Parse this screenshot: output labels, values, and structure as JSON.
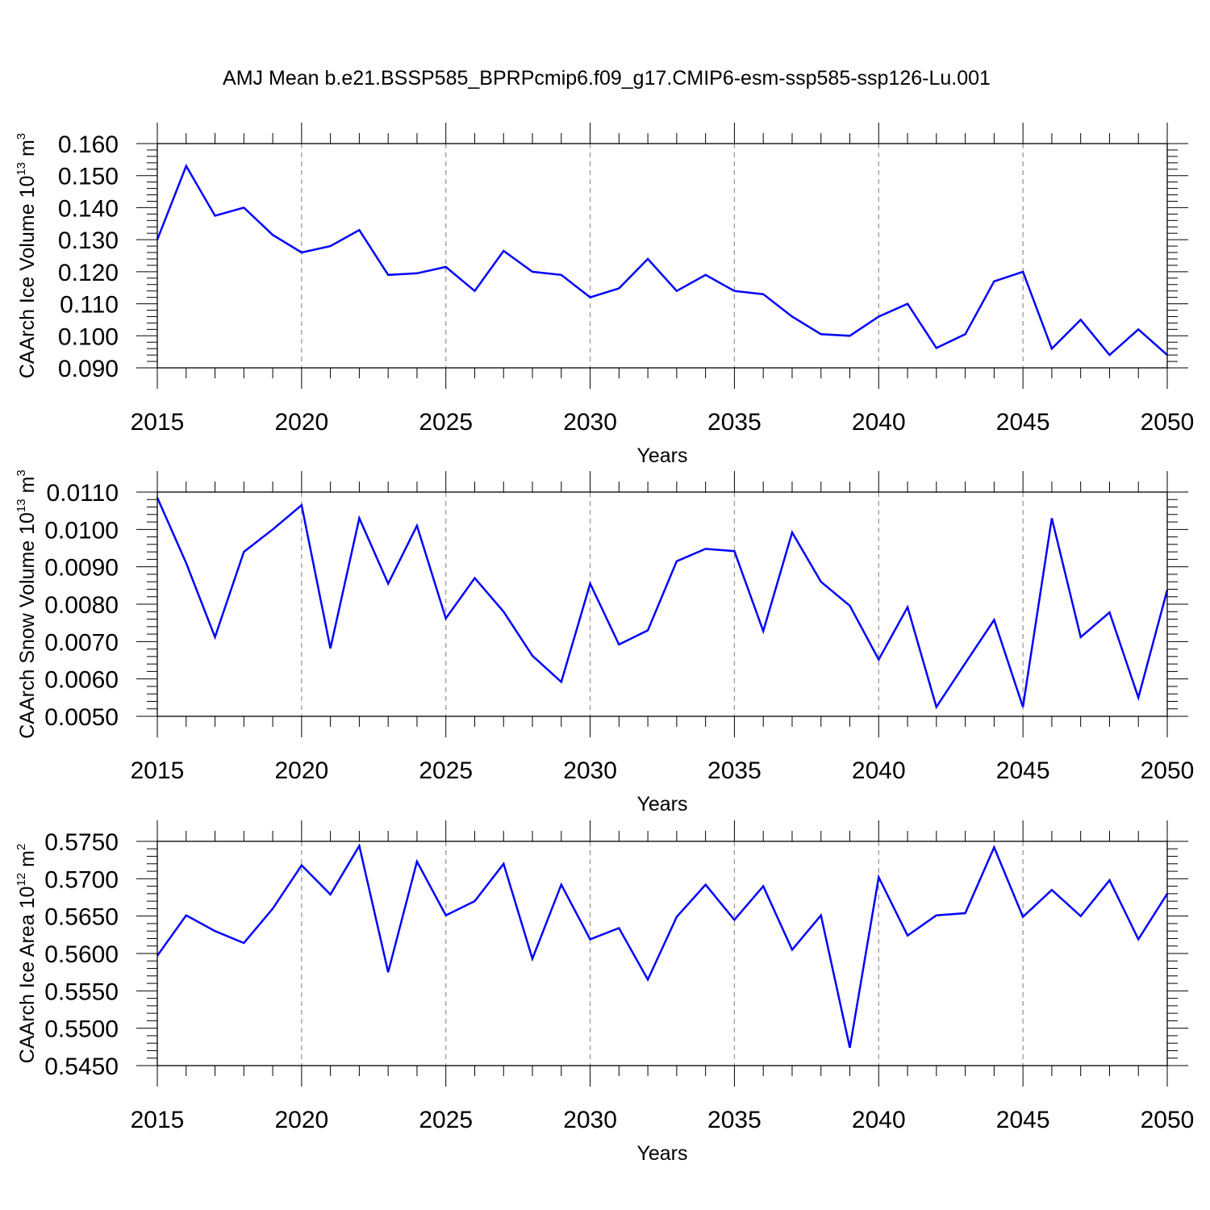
{
  "title": "AMJ Mean b.e21.BSSP585_BPRPcmip6.f09_g17.CMIP6-esm-ssp585-ssp126-Lu.001",
  "colors": {
    "line": "#0000ff",
    "axis": "#000000",
    "grid": "#999999",
    "background": "#ffffff"
  },
  "chart_data": [
    {
      "type": "line",
      "ylabel": {
        "text": "CAArch Ice Volume 10",
        "exp": "13",
        "unit": " m",
        "unit_exp": "3"
      },
      "xlabel": "Years",
      "xlim": [
        2015,
        2050
      ],
      "ylim": [
        0.09,
        0.16
      ],
      "x_ticks": [
        2015,
        2020,
        2025,
        2030,
        2035,
        2040,
        2045,
        2050
      ],
      "y_ticks": [
        "0.090",
        "0.100",
        "0.110",
        "0.120",
        "0.130",
        "0.140",
        "0.150",
        "0.160"
      ],
      "y_tick_values": [
        0.09,
        0.1,
        0.11,
        0.12,
        0.13,
        0.14,
        0.15,
        0.16
      ],
      "grid": "vertical dashed at major x ticks",
      "x": [
        2015,
        2016,
        2017,
        2018,
        2019,
        2020,
        2021,
        2022,
        2023,
        2024,
        2025,
        2026,
        2027,
        2028,
        2029,
        2030,
        2031,
        2032,
        2033,
        2034,
        2035,
        2036,
        2037,
        2038,
        2039,
        2040,
        2041,
        2042,
        2043,
        2044,
        2045,
        2046,
        2047,
        2048,
        2049,
        2050
      ],
      "values": [
        0.13,
        0.153,
        0.1375,
        0.14,
        0.1315,
        0.126,
        0.128,
        0.133,
        0.119,
        0.1195,
        0.1215,
        0.114,
        0.1265,
        0.12,
        0.119,
        0.112,
        0.1148,
        0.124,
        0.114,
        0.119,
        0.114,
        0.113,
        0.106,
        0.1005,
        0.1,
        0.106,
        0.11,
        0.0962,
        0.1005,
        0.117,
        0.12,
        0.096,
        0.105,
        0.094,
        0.102,
        0.094
      ]
    },
    {
      "type": "line",
      "ylabel": {
        "text": "CAArch Snow Volume 10",
        "exp": "13",
        "unit": " m",
        "unit_exp": "3"
      },
      "xlabel": "Years",
      "xlim": [
        2015,
        2050
      ],
      "ylim": [
        0.005,
        0.011
      ],
      "x_ticks": [
        2015,
        2020,
        2025,
        2030,
        2035,
        2040,
        2045,
        2050
      ],
      "y_ticks": [
        "0.0050",
        "0.0060",
        "0.0070",
        "0.0080",
        "0.0090",
        "0.0100",
        "0.0110"
      ],
      "y_tick_values": [
        0.005,
        0.006,
        0.007,
        0.008,
        0.009,
        0.01,
        0.011
      ],
      "grid": "vertical dashed at major x ticks",
      "x": [
        2015,
        2016,
        2017,
        2018,
        2019,
        2020,
        2021,
        2022,
        2023,
        2024,
        2025,
        2026,
        2027,
        2028,
        2029,
        2030,
        2031,
        2032,
        2033,
        2034,
        2035,
        2036,
        2037,
        2038,
        2039,
        2040,
        2041,
        2042,
        2043,
        2044,
        2045,
        2046,
        2047,
        2048,
        2049,
        2050
      ],
      "values": [
        0.01085,
        0.0091,
        0.00712,
        0.0094,
        0.01,
        0.01065,
        0.00682,
        0.0103,
        0.00855,
        0.0101,
        0.00762,
        0.0087,
        0.0078,
        0.00662,
        0.00592,
        0.00855,
        0.00692,
        0.0073,
        0.00915,
        0.00948,
        0.00942,
        0.00728,
        0.00992,
        0.0086,
        0.00796,
        0.00652,
        0.00792,
        0.00525,
        0.00642,
        0.00758,
        0.00525,
        0.0103,
        0.00712,
        0.00778,
        0.0055,
        0.00838
      ]
    },
    {
      "type": "line",
      "ylabel": {
        "text": "CAArch Ice Area 10",
        "exp": "12",
        "unit": " m",
        "unit_exp": "2"
      },
      "xlabel": "Years",
      "xlim": [
        2015,
        2050
      ],
      "ylim": [
        0.545,
        0.575
      ],
      "x_ticks": [
        2015,
        2020,
        2025,
        2030,
        2035,
        2040,
        2045,
        2050
      ],
      "y_ticks": [
        "0.5450",
        "0.5500",
        "0.5550",
        "0.5600",
        "0.5650",
        "0.5700",
        "0.5750"
      ],
      "y_tick_values": [
        0.545,
        0.55,
        0.555,
        0.56,
        0.565,
        0.57,
        0.575
      ],
      "grid": "vertical dashed at major x ticks",
      "x": [
        2015,
        2016,
        2017,
        2018,
        2019,
        2020,
        2021,
        2022,
        2023,
        2024,
        2025,
        2026,
        2027,
        2028,
        2029,
        2030,
        2031,
        2032,
        2033,
        2034,
        2035,
        2036,
        2037,
        2038,
        2039,
        2040,
        2041,
        2042,
        2043,
        2044,
        2045,
        2046,
        2047,
        2048,
        2049,
        2050
      ],
      "values": [
        0.5597,
        0.5651,
        0.563,
        0.5614,
        0.566,
        0.5718,
        0.5679,
        0.5744,
        0.5575,
        0.5723,
        0.5651,
        0.567,
        0.572,
        0.5593,
        0.5692,
        0.5619,
        0.5634,
        0.5565,
        0.5649,
        0.5692,
        0.5645,
        0.569,
        0.5605,
        0.5651,
        0.5474,
        0.5702,
        0.5624,
        0.5651,
        0.5654,
        0.5742,
        0.5649,
        0.5685,
        0.565,
        0.5698,
        0.5619,
        0.568
      ]
    }
  ]
}
